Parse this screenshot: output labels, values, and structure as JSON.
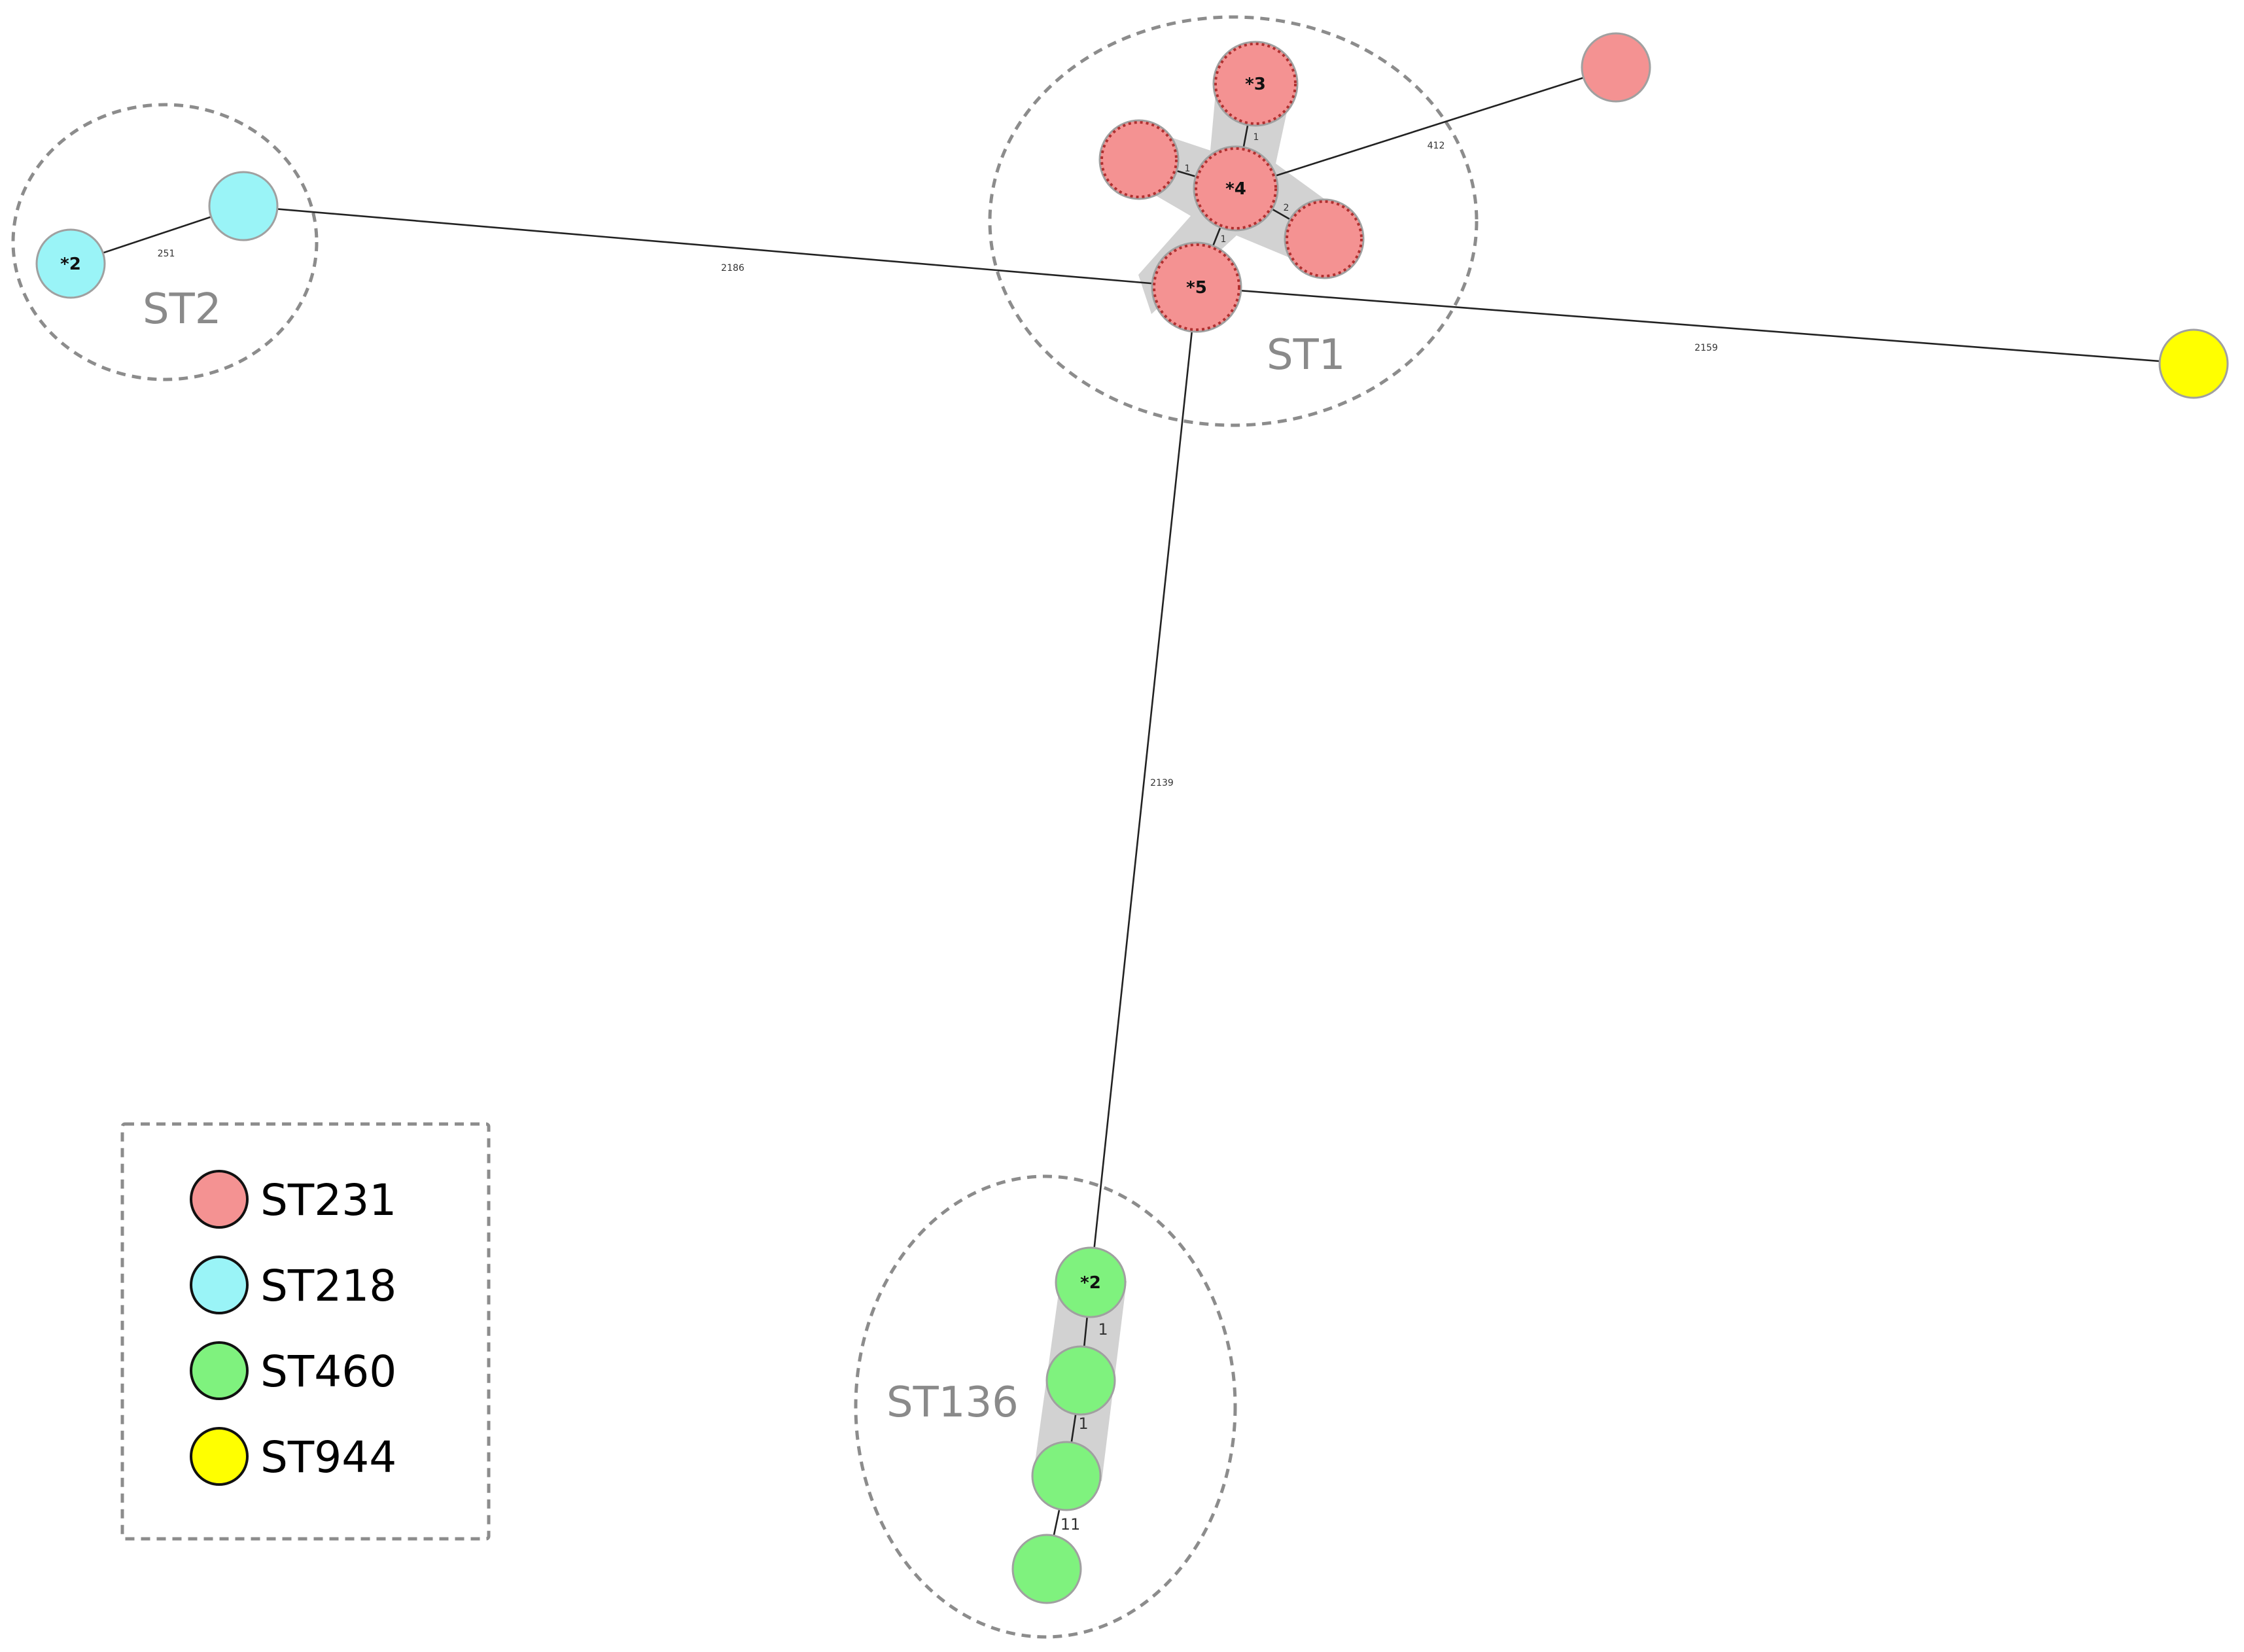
{
  "colors": {
    "ST231": "#f49292",
    "ST218": "#9af4f7",
    "ST460": "#7ff27e",
    "ST944": "#ffff00",
    "node_stroke": "#a0a0a0",
    "node_outline_dotted": "#b03030"
  },
  "clusters": [
    {
      "id": "c-st2",
      "label": "ST2"
    },
    {
      "id": "c-st1",
      "label": "ST1"
    },
    {
      "id": "c-st136",
      "label": "ST136"
    }
  ],
  "nodes": [
    {
      "id": "cyan-star2",
      "st": "ST218",
      "label": "*2"
    },
    {
      "id": "cyan-1",
      "st": "ST218",
      "label": ""
    },
    {
      "id": "red-star3",
      "st": "ST231",
      "label": "*3"
    },
    {
      "id": "red-left",
      "st": "ST231",
      "label": ""
    },
    {
      "id": "red-star4",
      "st": "ST231",
      "label": "*4"
    },
    {
      "id": "red-right",
      "st": "ST231",
      "label": ""
    },
    {
      "id": "red-star5",
      "st": "ST231",
      "label": "*5"
    },
    {
      "id": "red-far",
      "st": "ST231",
      "label": ""
    },
    {
      "id": "yellow-1",
      "st": "ST944",
      "label": ""
    },
    {
      "id": "green-star2",
      "st": "ST460",
      "label": "*2"
    },
    {
      "id": "green-2",
      "st": "ST460",
      "label": ""
    },
    {
      "id": "green-3",
      "st": "ST460",
      "label": ""
    },
    {
      "id": "green-4",
      "st": "ST460",
      "label": ""
    }
  ],
  "edges": [
    {
      "id": "e-cyan",
      "from": "cyan-star2",
      "to": "cyan-1",
      "label": "251"
    },
    {
      "id": "e-cyan-red",
      "from": "cyan-1",
      "to": "red-star5",
      "label": "2186"
    },
    {
      "id": "e-red-yellow",
      "from": "red-star5",
      "to": "yellow-1",
      "label": "2159"
    },
    {
      "id": "e-red-green",
      "from": "red-star5",
      "to": "green-star2",
      "label": "2139"
    },
    {
      "id": "e-red-far",
      "from": "red-star4",
      "to": "red-far",
      "label": "412"
    },
    {
      "id": "e-3-4",
      "from": "red-star3",
      "to": "red-star4",
      "label": "1"
    },
    {
      "id": "e-left-4",
      "from": "red-left",
      "to": "red-star4",
      "label": "1"
    },
    {
      "id": "e-4-right",
      "from": "red-star4",
      "to": "red-right",
      "label": "2"
    },
    {
      "id": "e-4-5",
      "from": "red-star4",
      "to": "red-star5",
      "label": "1"
    },
    {
      "id": "e-g1-g2",
      "from": "green-star2",
      "to": "green-2",
      "label": "1"
    },
    {
      "id": "e-g2-g3",
      "from": "green-2",
      "to": "green-3",
      "label": "1"
    },
    {
      "id": "e-g3-g4",
      "from": "green-3",
      "to": "green-4",
      "label": "11"
    }
  ],
  "legend": {
    "items": [
      {
        "label": "ST231",
        "color": "#f49292"
      },
      {
        "label": "ST218",
        "color": "#9af4f7"
      },
      {
        "label": "ST460",
        "color": "#7ff27e"
      },
      {
        "label": "ST944",
        "color": "#ffff00"
      }
    ]
  }
}
